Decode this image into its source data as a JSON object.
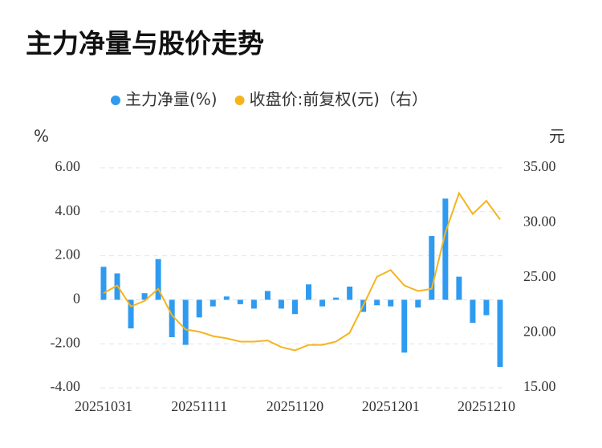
{
  "chart_data": {
    "type": "bar_line",
    "title": "主力净量与股价走势",
    "y_label": "%",
    "y2_label": "元",
    "categories": [
      "20251031",
      null,
      null,
      null,
      null,
      null,
      null,
      "20251111",
      null,
      null,
      null,
      null,
      null,
      null,
      "20251120",
      null,
      null,
      null,
      null,
      null,
      null,
      "20251201",
      null,
      null,
      null,
      null,
      null,
      null,
      "20251210",
      null
    ],
    "series": [
      {
        "name": "主力净量(%)",
        "type": "bar",
        "color": "#2f9bf0",
        "values": [
          1.5,
          1.2,
          -1.3,
          0.3,
          1.85,
          -1.7,
          -2.05,
          -0.8,
          -0.3,
          0.15,
          -0.2,
          -0.4,
          0.4,
          -0.4,
          -0.65,
          0.7,
          -0.3,
          0.1,
          0.6,
          -0.55,
          -0.25,
          -0.3,
          -2.4,
          -0.35,
          2.9,
          4.6,
          1.05,
          -1.05,
          -0.7,
          -3.05
        ]
      },
      {
        "name": "收盘价:前复权(元)（右）",
        "type": "line",
        "axis": "y2",
        "color": "#f5b41e",
        "values": [
          23.6,
          24.3,
          22.4,
          22.9,
          24.0,
          21.6,
          20.3,
          20.1,
          19.7,
          19.5,
          19.2,
          19.2,
          19.3,
          18.7,
          18.4,
          18.9,
          18.9,
          19.2,
          20.0,
          22.5,
          25.1,
          25.7,
          24.3,
          23.8,
          24.0,
          29.1,
          32.7,
          30.8,
          32.0,
          30.3
        ]
      }
    ],
    "ylim": [
      -4,
      6
    ],
    "yticks": [
      {
        "value": -4,
        "label": "-4.00"
      },
      {
        "value": -2,
        "label": "-2.00"
      },
      0,
      {
        "value": 2,
        "label": "2.00"
      },
      {
        "value": 4,
        "label": "4.00"
      },
      {
        "value": 6,
        "label": "6.00"
      }
    ],
    "y2lim": [
      15,
      35
    ],
    "y2ticks": [
      {
        "value": 15,
        "label": "15.00"
      },
      {
        "value": 20,
        "label": "20.00"
      },
      {
        "value": 25,
        "label": "25.00"
      },
      {
        "value": 30,
        "label": "30.00"
      },
      {
        "value": 35,
        "label": "35.00"
      }
    ],
    "grid": true,
    "legend": "top"
  }
}
